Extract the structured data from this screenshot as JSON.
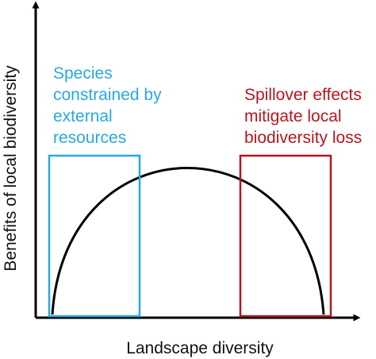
{
  "axes": {
    "y_label": "Benefits of local biodiversity",
    "x_label": "Landscape diversity"
  },
  "annotations": {
    "left": {
      "lines": [
        "Species",
        "constrained by",
        "external",
        "resources"
      ],
      "color": "#29a8e0"
    },
    "right": {
      "lines": [
        "Spillover effects",
        "mitigate local",
        "biodiversity loss"
      ],
      "color": "#b5161f"
    }
  },
  "curve": {
    "shape": "hump",
    "color": "#000000"
  }
}
